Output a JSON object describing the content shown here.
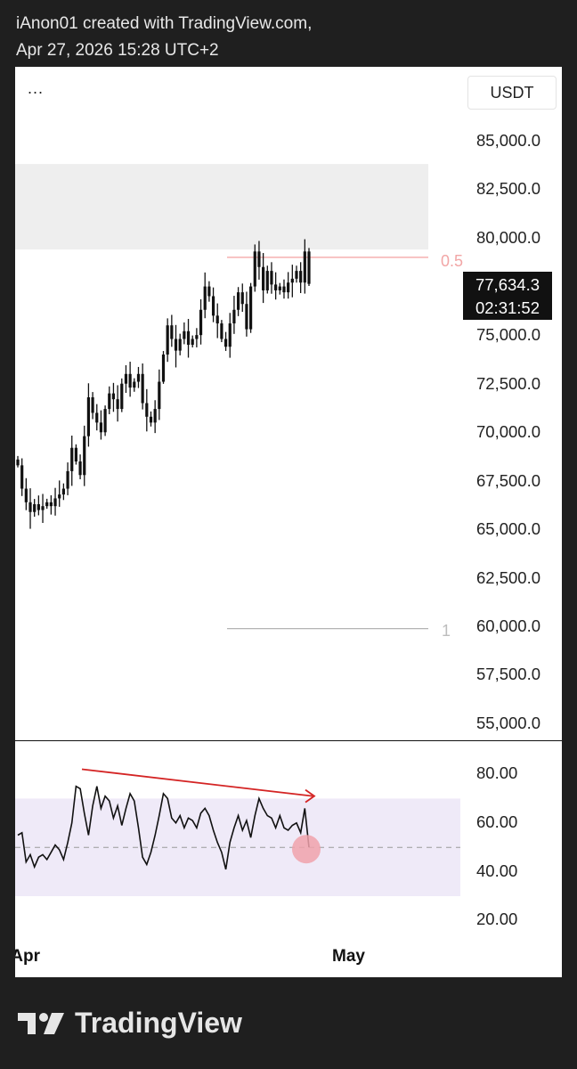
{
  "header": {
    "line1": "iAnon01 created with TradingView.com,",
    "line2": "Apr 27, 2026 15:28 UTC+2"
  },
  "toolbar": {
    "menu": "...",
    "currency": "USDT"
  },
  "current_price": {
    "price": "77,634.3",
    "countdown": "02:31:52"
  },
  "fib_labels": {
    "level_05": "0.5",
    "level_1": "1"
  },
  "date_labels": [
    "Apr",
    "May"
  ],
  "footer": {
    "brand": "TradingView"
  },
  "colors": {
    "candles": "#111111",
    "zone": "#eeeeee",
    "fib_05": "#f4a0a0",
    "fib_1": "#aaaaaa",
    "rsi_band": "#efeaf8",
    "divergence_arrow": "#d42424",
    "marker": "#f0a2ab"
  },
  "chart_data": [
    {
      "type": "candlestick",
      "title": "",
      "y_ticks": [
        "85,000.0",
        "82,500.0",
        "80,000.0",
        "75,000.0",
        "72,500.0",
        "70,000.0",
        "67,500.0",
        "65,000.0",
        "62,500.0",
        "60,000.0",
        "57,500.0",
        "55,000.0"
      ],
      "ylim": [
        54500,
        87000
      ],
      "resistance_zone": [
        79400,
        83800
      ],
      "fib_levels": [
        {
          "label": "0.5",
          "price": 79000
        },
        {
          "label": "1",
          "price": 59900
        }
      ],
      "closes": [
        68300,
        67100,
        66400,
        65900,
        66300,
        66000,
        66200,
        66400,
        66200,
        66600,
        66800,
        67100,
        68000,
        69200,
        68500,
        67800,
        69800,
        71800,
        71000,
        70500,
        70000,
        71200,
        72000,
        71700,
        71200,
        72500,
        73000,
        72300,
        72600,
        73000,
        71500,
        70800,
        70500,
        71200,
        72600,
        74000,
        75500,
        74800,
        74200,
        74800,
        75200,
        74500,
        74800,
        75000,
        76300,
        77500,
        77000,
        76000,
        75600,
        74800,
        74400,
        75600,
        76300,
        77200,
        76600,
        75300,
        77500,
        79300,
        78500,
        77300,
        78300,
        77600,
        77300,
        77500,
        77200,
        77700,
        77900,
        78300,
        77700,
        79300,
        77634
      ],
      "legend": []
    },
    {
      "type": "line",
      "title": "",
      "y_ticks": [
        "80.00",
        "60.00",
        "40.00",
        "20.00"
      ],
      "ylim": [
        12,
        92
      ],
      "band": [
        30,
        70
      ],
      "midline": 50,
      "values": [
        55,
        56,
        44,
        47,
        42,
        46,
        47,
        45,
        48,
        51,
        49,
        45,
        52,
        60,
        75,
        74,
        64,
        55,
        67,
        75,
        66,
        71,
        69,
        62,
        67,
        59,
        66,
        72,
        69,
        58,
        46,
        43,
        48,
        55,
        63,
        72,
        70,
        62,
        60,
        63,
        58,
        62,
        61,
        58,
        64,
        66,
        63,
        57,
        52,
        48,
        41,
        52,
        58,
        63,
        57,
        61,
        54,
        63,
        70,
        66,
        63,
        62,
        58,
        63,
        58,
        57,
        59,
        60,
        56,
        66,
        50
      ],
      "divergence_arrow": {
        "from_value": 82,
        "to_value": 71
      },
      "legend": []
    }
  ]
}
